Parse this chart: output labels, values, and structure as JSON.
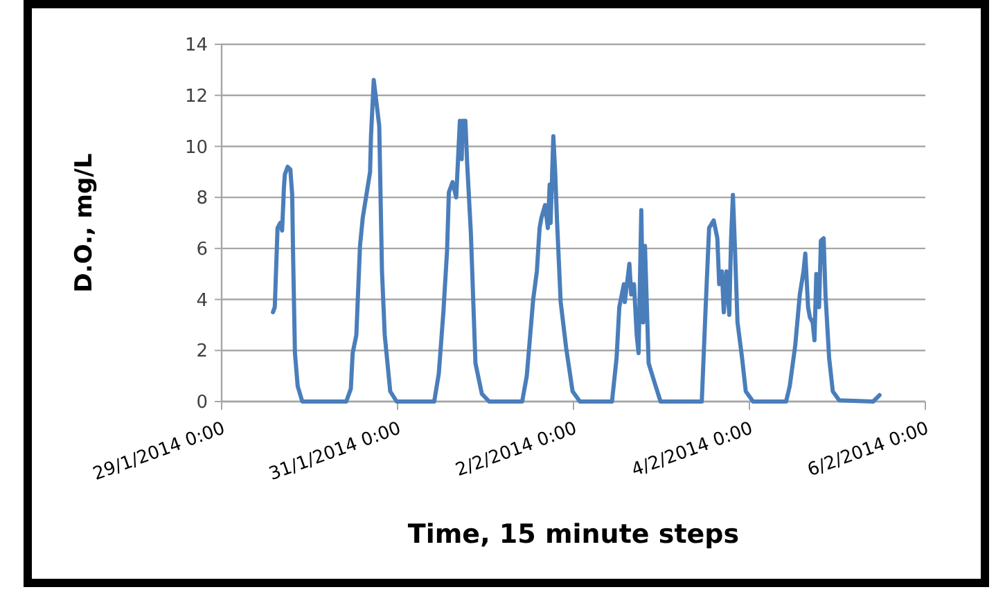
{
  "chart_data": {
    "type": "line",
    "xlabel": "Time, 15 minute steps",
    "ylabel": "D.O., mg/L",
    "xlim": [
      "2014-01-29T00:00",
      "2014-02-06T00:00"
    ],
    "xticks": [
      {
        "value": "2014-01-29T00:00",
        "label": "29/1/2014 0:00"
      },
      {
        "value": "2014-01-31T00:00",
        "label": "31/1/2014 0:00"
      },
      {
        "value": "2014-02-02T00:00",
        "label": "2/2/2014 0:00"
      },
      {
        "value": "2014-02-04T00:00",
        "label": "4/2/2014 0:00"
      },
      {
        "value": "2014-02-06T00:00",
        "label": "6/2/2014 0:00"
      }
    ],
    "ylim": [
      0,
      14
    ],
    "yticks": [
      0,
      2,
      4,
      6,
      8,
      10,
      12,
      14
    ],
    "grid": "y",
    "marker": "none",
    "line_style": "solid",
    "series": [
      {
        "color": "#4a7ebb",
        "x": [
          "2014-01-29T14:00",
          "2014-01-29T14:30",
          "2014-01-29T15:15",
          "2014-01-29T16:00",
          "2014-01-29T16:30",
          "2014-01-29T17:00",
          "2014-01-29T17:15",
          "2014-01-29T18:00",
          "2014-01-29T18:45",
          "2014-01-29T19:15",
          "2014-01-29T19:30",
          "2014-01-29T20:00",
          "2014-01-29T20:45",
          "2014-01-29T22:00",
          "2014-01-30T10:00",
          "2014-01-30T11:15",
          "2014-01-30T11:45",
          "2014-01-30T12:45",
          "2014-01-30T13:45",
          "2014-01-30T14:30",
          "2014-01-30T15:30",
          "2014-01-30T16:30",
          "2014-01-30T16:45",
          "2014-01-30T17:30",
          "2014-01-30T18:00",
          "2014-01-30T19:00",
          "2014-01-30T19:45",
          "2014-01-30T20:30",
          "2014-01-30T22:00",
          "2014-01-30T23:45",
          "2014-01-31T10:00",
          "2014-01-31T11:15",
          "2014-01-31T12:30",
          "2014-01-31T13:30",
          "2014-01-31T14:00",
          "2014-01-31T15:00",
          "2014-01-31T16:00",
          "2014-01-31T16:30",
          "2014-01-31T17:00",
          "2014-01-31T17:30",
          "2014-01-31T17:45",
          "2014-01-31T18:30",
          "2014-01-31T19:00",
          "2014-01-31T20:00",
          "2014-01-31T21:15",
          "2014-01-31T23:00",
          "2014-02-01T01:00",
          "2014-02-01T10:00",
          "2014-02-01T11:15",
          "2014-02-01T13:00",
          "2014-02-01T14:00",
          "2014-02-01T14:45",
          "2014-02-01T15:15",
          "2014-02-01T16:15",
          "2014-02-01T17:00",
          "2014-02-01T17:30",
          "2014-02-01T17:45",
          "2014-02-01T18:30",
          "2014-02-01T19:00",
          "2014-02-01T19:30",
          "2014-02-01T20:30",
          "2014-02-01T22:00",
          "2014-02-01T23:45",
          "2014-02-02T01:45",
          "2014-02-02T10:30",
          "2014-02-02T11:45",
          "2014-02-02T12:30",
          "2014-02-02T13:45",
          "2014-02-02T14:00",
          "2014-02-02T14:45",
          "2014-02-02T15:15",
          "2014-02-02T15:45",
          "2014-02-02T16:30",
          "2014-02-02T17:15",
          "2014-02-02T17:45",
          "2014-02-02T18:30",
          "2014-02-02T19:00",
          "2014-02-02T19:30",
          "2014-02-02T20:30",
          "2014-02-02T22:00",
          "2014-02-02T23:45",
          "2014-02-03T11:00",
          "2014-02-03T12:00",
          "2014-02-03T13:00",
          "2014-02-03T14:15",
          "2014-02-03T15:15",
          "2014-02-03T15:45",
          "2014-02-03T16:30",
          "2014-02-03T17:00",
          "2014-02-03T17:45",
          "2014-02-03T18:30",
          "2014-02-03T19:00",
          "2014-02-03T19:30",
          "2014-02-03T20:00",
          "2014-02-03T20:45",
          "2014-02-03T22:00",
          "2014-02-03T23:00",
          "2014-02-04T01:00",
          "2014-02-04T10:00",
          "2014-02-04T11:00",
          "2014-02-04T12:30",
          "2014-02-04T13:45",
          "2014-02-04T14:45",
          "2014-02-04T15:15",
          "2014-02-04T16:00",
          "2014-02-04T16:30",
          "2014-02-04T17:15",
          "2014-02-04T17:45",
          "2014-02-04T18:15",
          "2014-02-04T19:00",
          "2014-02-04T19:30",
          "2014-02-04T20:15",
          "2014-02-04T20:45",
          "2014-02-04T21:45",
          "2014-02-04T22:45",
          "2014-02-05T00:30",
          "2014-02-05T09:45",
          "2014-02-05T11:30"
        ],
        "values": [
          3.5,
          3.7,
          6.8,
          7.0,
          6.7,
          8.4,
          8.9,
          9.2,
          9.1,
          8.1,
          5.7,
          1.9,
          0.6,
          0,
          0,
          0.5,
          1.9,
          2.6,
          6.1,
          7.2,
          8.1,
          9.0,
          10.4,
          12.6,
          12.0,
          10.8,
          5.1,
          2.6,
          0.4,
          0,
          0,
          1.1,
          3.5,
          5.9,
          8.2,
          8.6,
          8.0,
          9.5,
          11.0,
          9.5,
          11.0,
          11.0,
          9.3,
          6.6,
          1.5,
          0.3,
          0,
          0,
          1.0,
          4.0,
          5.1,
          6.8,
          7.2,
          7.7,
          6.8,
          8.5,
          7.0,
          10.4,
          9.0,
          7.1,
          3.9,
          2.1,
          0.4,
          0,
          0,
          1.7,
          3.7,
          4.6,
          3.9,
          4.8,
          5.4,
          4.2,
          4.6,
          2.6,
          1.9,
          7.5,
          3.1,
          6.1,
          1.5,
          0.8,
          0,
          0,
          3.5,
          6.8,
          7.1,
          6.4,
          4.6,
          5.1,
          3.5,
          5.1,
          3.4,
          6.4,
          8.1,
          6.2,
          3.1,
          1.7,
          0.4,
          0,
          0,
          0.6,
          2.2,
          4.2,
          5.1,
          5.8,
          3.7,
          3.3,
          3.1,
          2.4,
          5.0,
          3.7,
          6.3,
          6.4,
          4.2,
          1.7,
          0.4,
          0.05,
          0,
          0.25
        ]
      }
    ]
  }
}
